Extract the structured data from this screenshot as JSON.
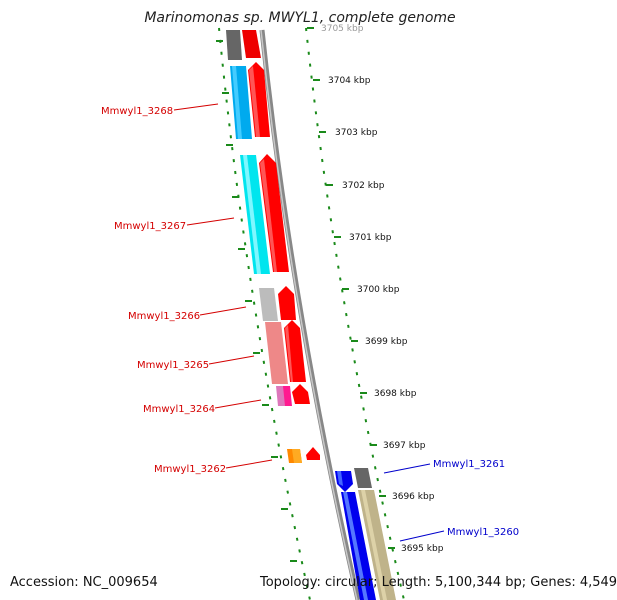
{
  "title": "Marinomonas sp. MWYL1, complete genome",
  "footer": {
    "accession": "Accession: NC_009654",
    "summary": "Topology: circular; Length: 5,100,344 bp; Genes: 4,549"
  },
  "ticks": [
    {
      "label": "3705 kbp"
    },
    {
      "label": "3704 kbp"
    },
    {
      "label": "3703 kbp"
    },
    {
      "label": "3702 kbp"
    },
    {
      "label": "3701 kbp"
    },
    {
      "label": "3700 kbp"
    },
    {
      "label": "3699 kbp"
    },
    {
      "label": "3698 kbp"
    },
    {
      "label": "3697 kbp"
    },
    {
      "label": "3696 kbp"
    },
    {
      "label": "3695 kbp"
    }
  ],
  "gene_labels": [
    {
      "text": "Mmwyl1_3268",
      "strand": "reverse",
      "color": "#d40000"
    },
    {
      "text": "Mmwyl1_3267",
      "strand": "reverse",
      "color": "#d40000"
    },
    {
      "text": "Mmwyl1_3266",
      "strand": "reverse",
      "color": "#d40000"
    },
    {
      "text": "Mmwyl1_3265",
      "strand": "reverse",
      "color": "#d40000"
    },
    {
      "text": "Mmwyl1_3264",
      "strand": "reverse",
      "color": "#d40000"
    },
    {
      "text": "Mmwyl1_3262",
      "strand": "reverse",
      "color": "#d40000"
    },
    {
      "text": "Mmwyl1_3261",
      "strand": "forward",
      "color": "#0000cc"
    },
    {
      "text": "Mmwyl1_3260",
      "strand": "forward",
      "color": "#0000cc"
    }
  ],
  "colors": {
    "backbone": "#8c8c8c",
    "tick": "#1a8a1a",
    "reverse_strand": "#ff0000",
    "forward_strand": "#0000ff",
    "reverse_label": "#d40000",
    "forward_label": "#0000cc"
  }
}
